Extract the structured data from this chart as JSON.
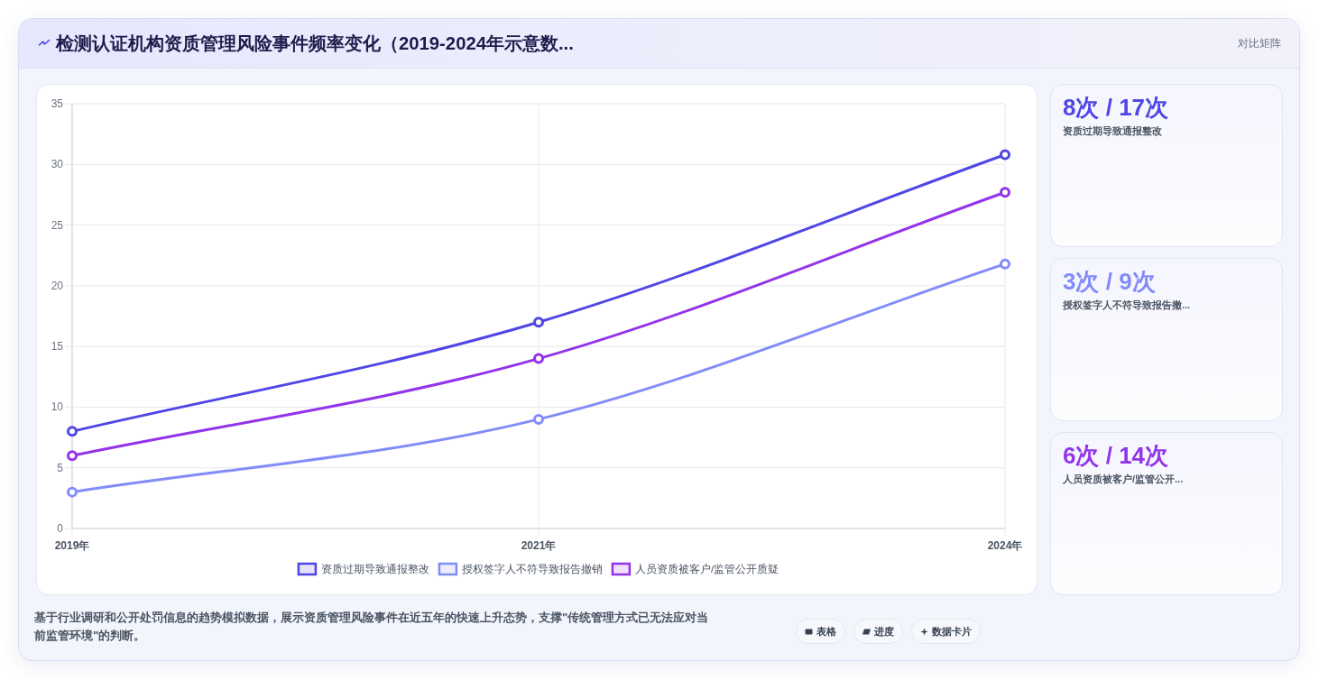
{
  "chart_data": [
    {
      "type": "line",
      "title": "检测认证机构资质管理风险事件频率变化（2019-2024年示意数...",
      "categories": [
        "2019年",
        "2021年",
        "2024年"
      ],
      "series": [
        {
          "name": "资质过期导致通报整改",
          "color": "#4f46e5",
          "values": [
            8,
            17,
            30.8
          ]
        },
        {
          "name": "授权签字人不符导致报告撤销",
          "color": "#818cf8",
          "values": [
            3,
            9,
            21.8
          ]
        },
        {
          "name": "人员资质被客户/监管公开质疑",
          "color": "#9333ea",
          "values": [
            6,
            14,
            27.7
          ]
        }
      ],
      "ylim": [
        0,
        35
      ],
      "yticks": [
        0,
        5,
        10,
        15,
        20,
        25,
        30,
        35
      ],
      "grid": true,
      "legend": "bottom",
      "marker": "circle",
      "line_style": "solid",
      "annotations": [
        "对比矩阵",
        "基于行业调研和公开处罚信息的趋势模拟数据，展示资质管理风险事件在近五年的快速上升态势，支撑\"传统管理方式已无法应对当前监管环境\"的判断。",
        "表格",
        "进度",
        "数据卡片"
      ]
    },
    {
      "type": "other",
      "title": "8次 / 17次",
      "subtitle": "资质过期导致通报整改",
      "color": "#4f46e5"
    },
    {
      "type": "other",
      "title": "3次 / 9次",
      "subtitle": "授权签字人不符导致报告撤...",
      "color": "#818cf8"
    },
    {
      "type": "other",
      "title": "6次 / 14次",
      "subtitle": "人员资质被客户/监管公开...",
      "color": "#9333ea"
    }
  ]
}
